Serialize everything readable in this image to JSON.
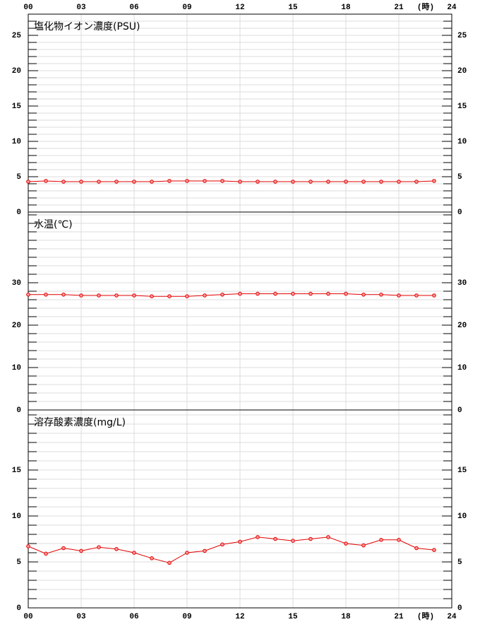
{
  "chart_data": [
    {
      "type": "line",
      "title": "塩化物イオン濃度(PSU)",
      "x_unit": "(時)",
      "color": "#e00000",
      "x": [
        0,
        1,
        2,
        3,
        4,
        5,
        6,
        7,
        8,
        9,
        10,
        11,
        12,
        13,
        14,
        15,
        16,
        17,
        18,
        19,
        20,
        21,
        22,
        23
      ],
      "values": [
        4.3,
        4.4,
        4.3,
        4.3,
        4.3,
        4.3,
        4.3,
        4.3,
        4.4,
        4.4,
        4.4,
        4.4,
        4.3,
        4.3,
        4.3,
        4.3,
        4.3,
        4.3,
        4.3,
        4.3,
        4.3,
        4.3,
        4.3,
        4.4
      ],
      "xlim": [
        0,
        24
      ],
      "xticks": [
        {
          "value": 0,
          "label": "00"
        },
        {
          "value": 3,
          "label": "03"
        },
        {
          "value": 6,
          "label": "06"
        },
        {
          "value": 9,
          "label": "09"
        },
        12,
        15,
        18,
        21,
        24
      ],
      "ylim": [
        0,
        28
      ],
      "yticks": [
        0,
        5,
        10,
        15,
        20,
        25
      ],
      "grid": true
    },
    {
      "type": "line",
      "title": "水温(℃)",
      "color": "#e00000",
      "x": [
        0,
        1,
        2,
        3,
        4,
        5,
        6,
        7,
        8,
        9,
        10,
        11,
        12,
        13,
        14,
        15,
        16,
        17,
        18,
        19,
        20,
        21,
        22,
        23
      ],
      "values": [
        27.2,
        27.2,
        27.2,
        27.0,
        27.0,
        27.0,
        27.0,
        26.8,
        26.8,
        26.8,
        27.0,
        27.2,
        27.4,
        27.4,
        27.4,
        27.4,
        27.4,
        27.4,
        27.4,
        27.2,
        27.2,
        27.0,
        27.0,
        27.0
      ],
      "xlim": [
        0,
        24
      ],
      "xticks": [
        0,
        3,
        6,
        9,
        12,
        15,
        18,
        21,
        24
      ],
      "ylim": [
        0,
        46.667
      ],
      "yticks": [
        0,
        10,
        20,
        30
      ],
      "grid": true
    },
    {
      "type": "line",
      "title": "溶存酸素濃度(mg/L)",
      "x_unit": "(時)",
      "color": "#e00000",
      "x": [
        0,
        1,
        2,
        3,
        4,
        5,
        6,
        7,
        8,
        9,
        10,
        11,
        12,
        13,
        14,
        15,
        16,
        17,
        18,
        19,
        20,
        21,
        22,
        23
      ],
      "values": [
        6.7,
        5.9,
        6.5,
        6.2,
        6.6,
        6.4,
        6.0,
        5.4,
        4.9,
        6.0,
        6.2,
        6.9,
        7.2,
        7.7,
        7.5,
        7.3,
        7.5,
        7.7,
        7.0,
        6.8,
        7.4,
        7.4,
        6.5,
        6.3
      ],
      "xlim": [
        0,
        24
      ],
      "xticks": [
        {
          "value": 0,
          "label": "00"
        },
        {
          "value": 3,
          "label": "03"
        },
        {
          "value": 6,
          "label": "06"
        },
        {
          "value": 9,
          "label": "09"
        },
        12,
        15,
        18,
        21,
        24
      ],
      "ylim": [
        0,
        21.538
      ],
      "yticks": [
        0,
        5,
        10,
        15
      ],
      "grid": true
    }
  ]
}
